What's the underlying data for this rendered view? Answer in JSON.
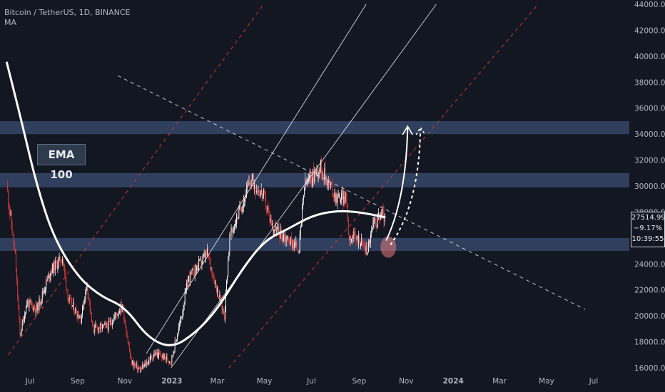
{
  "header": {
    "symbol_line": "Bitcoin / TetherUS, 1D, BINANCE",
    "indicator": "MA"
  },
  "annotation_label": "EMA 100",
  "price_label": {
    "price": "27514.99",
    "change": "−9.17%",
    "countdown": "10:39:55"
  },
  "colors": {
    "background": "#131722",
    "candle_up": "#ffffff",
    "candle_down": "#e53935",
    "zone": "#3a4f74",
    "ema": "#ffffff",
    "channel_white": "#ffffff",
    "channel_red": "#e53935"
  },
  "chart_data": {
    "type": "candlestick",
    "y_axis": {
      "range": [
        16000,
        44000
      ],
      "ticks": [
        "16000.00",
        "18000.00",
        "20000.00",
        "22000.00",
        "24000.00",
        "26000.00",
        "28000.00",
        "30000.00",
        "32000.00",
        "34000.00",
        "36000.00",
        "38000.00",
        "40000.00",
        "42000.00",
        "44000.00"
      ]
    },
    "x_axis": {
      "ticks": [
        "Jul",
        "Sep",
        "Nov",
        "2023",
        "Mar",
        "May",
        "Jul",
        "Sep",
        "Nov",
        "2024",
        "Mar",
        "May",
        "Jul"
      ]
    },
    "price_series": [
      [
        "2022-06-01",
        30000
      ],
      [
        "2022-06-12",
        24500
      ],
      [
        "2022-06-18",
        18500
      ],
      [
        "2022-06-27",
        21000
      ],
      [
        "2022-07-10",
        20500
      ],
      [
        "2022-07-28",
        23500
      ],
      [
        "2022-08-12",
        24500
      ],
      [
        "2022-08-20",
        21200
      ],
      [
        "2022-09-05",
        19800
      ],
      [
        "2022-09-13",
        22500
      ],
      [
        "2022-09-20",
        19000
      ],
      [
        "2022-10-10",
        19200
      ],
      [
        "2022-10-29",
        20800
      ],
      [
        "2022-11-09",
        16500
      ],
      [
        "2022-11-21",
        15800
      ],
      [
        "2022-12-10",
        17100
      ],
      [
        "2022-12-31",
        16550
      ],
      [
        "2023-01-13",
        19800
      ],
      [
        "2023-01-22",
        22800
      ],
      [
        "2023-02-16",
        24800
      ],
      [
        "2023-03-10",
        20000
      ],
      [
        "2023-03-17",
        26000
      ],
      [
        "2023-04-01",
        28500
      ],
      [
        "2023-04-14",
        30500
      ],
      [
        "2023-04-30",
        29200
      ],
      [
        "2023-05-12",
        26800
      ],
      [
        "2023-06-15",
        25200
      ],
      [
        "2023-06-22",
        30000
      ],
      [
        "2023-07-06",
        31000
      ],
      [
        "2023-07-13",
        31500
      ],
      [
        "2023-08-01",
        29200
      ],
      [
        "2023-08-16",
        29000
      ],
      [
        "2023-08-18",
        26200
      ],
      [
        "2023-09-01",
        25900
      ],
      [
        "2023-09-11",
        25000
      ],
      [
        "2023-09-20",
        27100
      ],
      [
        "2023-10-01",
        27900
      ],
      [
        "2023-10-04",
        27500
      ]
    ],
    "ema_100": [
      [
        "2022-06-01",
        39500
      ],
      [
        "2022-06-20",
        35000
      ],
      [
        "2022-07-10",
        30000
      ],
      [
        "2022-08-01",
        26000
      ],
      [
        "2022-09-01",
        23000
      ],
      [
        "2022-10-01",
        21500
      ],
      [
        "2022-11-01",
        20700
      ],
      [
        "2022-12-01",
        18300
      ],
      [
        "2023-01-01",
        17500
      ],
      [
        "2023-02-01",
        18700
      ],
      [
        "2023-03-01",
        20500
      ],
      [
        "2023-04-01",
        23500
      ],
      [
        "2023-05-01",
        25800
      ],
      [
        "2023-06-01",
        26700
      ],
      [
        "2023-07-01",
        27700
      ],
      [
        "2023-08-01",
        28100
      ],
      [
        "2023-09-01",
        28000
      ],
      [
        "2023-10-04",
        27600
      ]
    ],
    "zones": [
      [
        34000,
        35000
      ],
      [
        29900,
        31000
      ],
      [
        25000,
        26000
      ]
    ],
    "channel_lines": [
      {
        "style": "white-solid",
        "points": [
          [
            "2022-11-29",
            17100
          ],
          [
            "2023-09-10",
            44000
          ]
        ]
      },
      {
        "style": "white-solid",
        "points": [
          [
            "2022-12-31",
            16000
          ],
          [
            "2023-12-10",
            44000
          ]
        ]
      },
      {
        "style": "white-dashed",
        "points": [
          [
            "2022-10-23",
            38500
          ],
          [
            "2024-06-20",
            20500
          ]
        ]
      },
      {
        "style": "red-dashed",
        "points": [
          [
            "2022-06-03",
            17000
          ],
          [
            "2023-04-30",
            44000
          ]
        ]
      },
      {
        "style": "red-dashed",
        "points": [
          [
            "2023-03-16",
            16000
          ],
          [
            "2024-04-20",
            44000
          ]
        ]
      }
    ],
    "projection": {
      "target": 34500
    }
  }
}
